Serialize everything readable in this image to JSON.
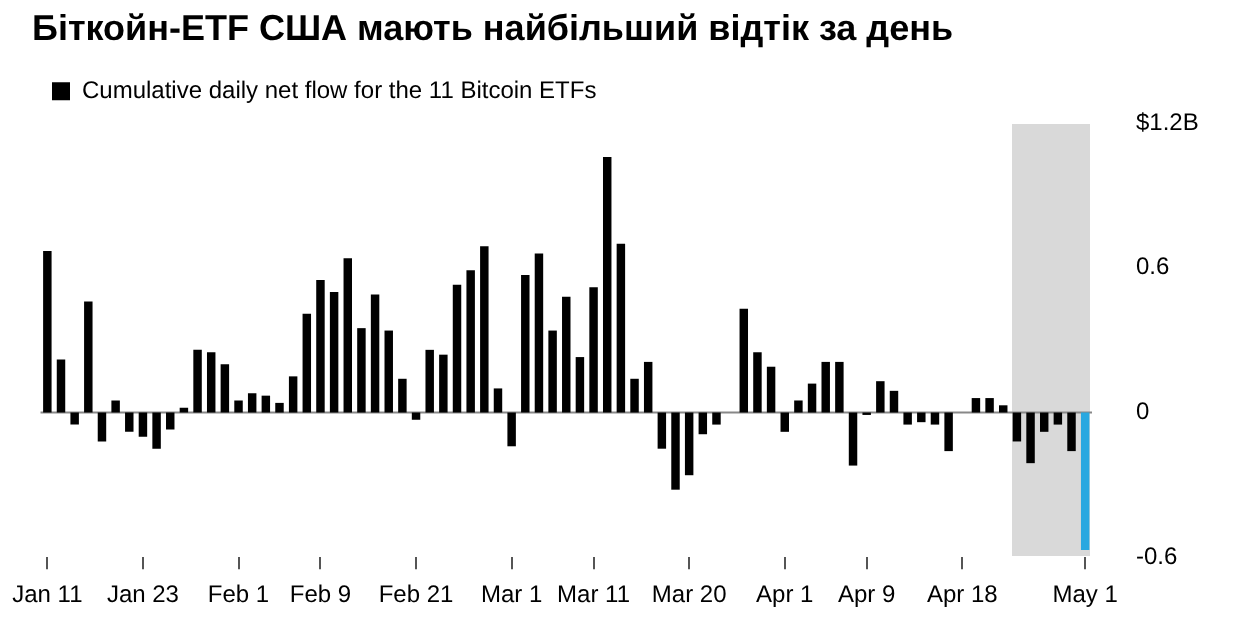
{
  "chart_data": {
    "type": "bar",
    "title": "Біткойн-ETF США мають найбільший відтік за день",
    "categories": [
      "Jan 11",
      null,
      null,
      null,
      null,
      null,
      null,
      "Jan 23",
      null,
      null,
      null,
      null,
      null,
      null,
      "Feb 1",
      null,
      null,
      null,
      null,
      null,
      "Feb 9",
      null,
      null,
      null,
      null,
      null,
      null,
      "Feb 21",
      null,
      null,
      null,
      null,
      null,
      null,
      "Mar 1",
      null,
      null,
      null,
      null,
      null,
      "Mar 11",
      null,
      null,
      null,
      null,
      null,
      null,
      "Mar 20",
      null,
      null,
      null,
      null,
      null,
      null,
      "Apr 1",
      null,
      null,
      null,
      null,
      null,
      "Apr 9",
      null,
      null,
      null,
      null,
      null,
      null,
      "Apr 18",
      null,
      null,
      null,
      null,
      null,
      null,
      null,
      null,
      "May 1"
    ],
    "series": [
      {
        "name": "Cumulative daily net flow for the 11 Bitcoin ETFs",
        "color": "#000000",
        "colors": [
          "#000000",
          "#000000",
          "#000000",
          "#000000",
          "#000000",
          "#000000",
          "#000000",
          "#000000",
          "#000000",
          "#000000",
          "#000000",
          "#000000",
          "#000000",
          "#000000",
          "#000000",
          "#000000",
          "#000000",
          "#000000",
          "#000000",
          "#000000",
          "#000000",
          "#000000",
          "#000000",
          "#000000",
          "#000000",
          "#000000",
          "#000000",
          "#000000",
          "#000000",
          "#000000",
          "#000000",
          "#000000",
          "#000000",
          "#000000",
          "#000000",
          "#000000",
          "#000000",
          "#000000",
          "#000000",
          "#000000",
          "#000000",
          "#000000",
          "#000000",
          "#000000",
          "#000000",
          "#000000",
          "#000000",
          "#000000",
          "#000000",
          "#000000",
          "#000000",
          "#000000",
          "#000000",
          "#000000",
          "#000000",
          "#000000",
          "#000000",
          "#000000",
          "#000000",
          "#000000",
          "#000000",
          "#000000",
          "#000000",
          "#000000",
          "#000000",
          "#000000",
          "#000000",
          "#000000",
          "#000000",
          "#000000",
          "#000000",
          "#000000",
          "#000000",
          "#000000",
          "#000000",
          "#000000",
          "#29a8e0"
        ],
        "values": [
          0.67,
          0.22,
          -0.05,
          0.46,
          -0.12,
          0.05,
          -0.08,
          -0.1,
          -0.15,
          -0.07,
          0.02,
          0.26,
          0.25,
          0.2,
          0.05,
          0.08,
          0.07,
          0.04,
          0.15,
          0.41,
          0.55,
          0.5,
          0.64,
          0.35,
          0.49,
          0.34,
          0.14,
          -0.03,
          0.26,
          0.24,
          0.53,
          0.59,
          0.69,
          0.1,
          -0.14,
          0.57,
          0.66,
          0.34,
          0.48,
          0.23,
          0.52,
          1.06,
          0.7,
          0.14,
          0.21,
          -0.15,
          -0.32,
          -0.26,
          -0.09,
          -0.05,
          0,
          0.43,
          0.25,
          0.19,
          -0.08,
          0.05,
          0.12,
          0.21,
          0.21,
          -0.22,
          -0.01,
          0.13,
          0.09,
          -0.05,
          -0.04,
          -0.05,
          -0.16,
          0,
          0.06,
          0.06,
          0.03,
          -0.12,
          -0.21,
          -0.08,
          -0.05,
          -0.16,
          -0.57
        ]
      }
    ],
    "ylim": [
      -0.6,
      1.2
    ],
    "yticks": [
      {
        "value": -0.6,
        "label": "-0.6"
      },
      {
        "value": 0,
        "label": "0"
      },
      {
        "value": 0.6,
        "label": "0.6"
      },
      {
        "value": 1.2,
        "label": "$1.2B"
      }
    ],
    "ref_lines": [
      {
        "axis": "y",
        "value": 0,
        "color": "#888888"
      }
    ],
    "grid": false,
    "legend": "top left"
  }
}
